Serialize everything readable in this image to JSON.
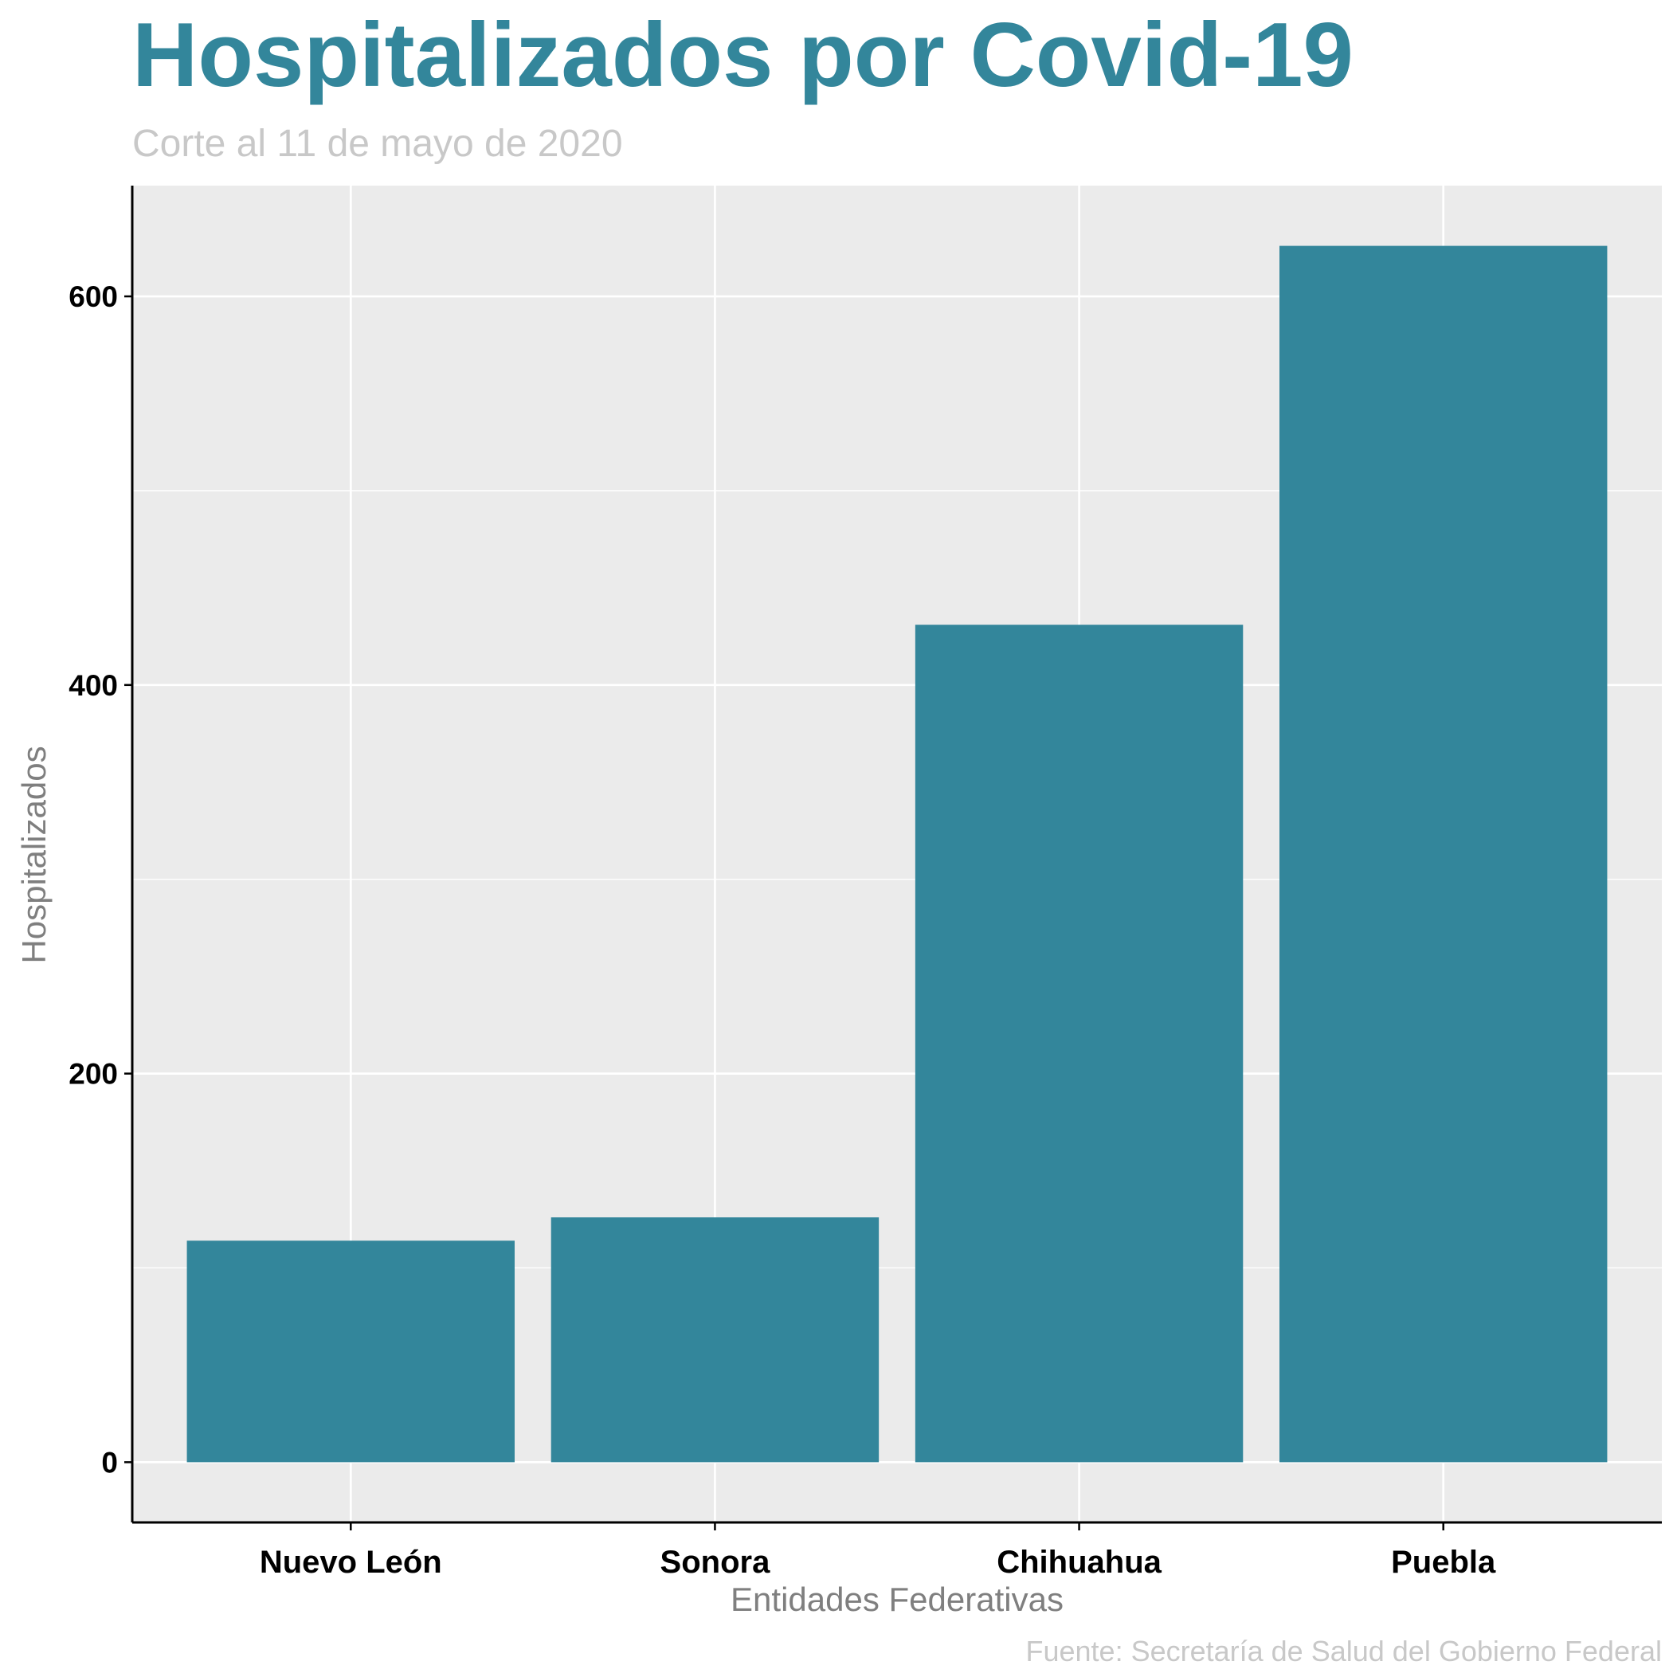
{
  "chart_data": {
    "type": "bar",
    "title": "Hospitalizados por Covid-19",
    "subtitle": "Corte al 11 de mayo de 2020",
    "xlabel": "Entidades Federativas",
    "ylabel": "Hospitalizados",
    "caption": "Fuente: Secretaría de Salud del Gobierno Federal",
    "categories": [
      "Nuevo León",
      "Sonora",
      "Chihuahua",
      "Puebla"
    ],
    "values": [
      114,
      126,
      431,
      626
    ],
    "ylim": [
      -31,
      657
    ],
    "yticks": [
      0,
      200,
      400,
      600
    ],
    "yticks_minor": [
      100,
      300,
      500
    ],
    "grid": true,
    "colors": {
      "bar": "#33869B",
      "title": "#33869B",
      "subtitle": "#C8C8C8",
      "axis_title": "#7F7F7F",
      "caption": "#C8C8C8",
      "panel": "#EBEBEB",
      "gridline": "#FFFFFF",
      "axis_line": "#000000",
      "tick_label": "#000000"
    }
  }
}
